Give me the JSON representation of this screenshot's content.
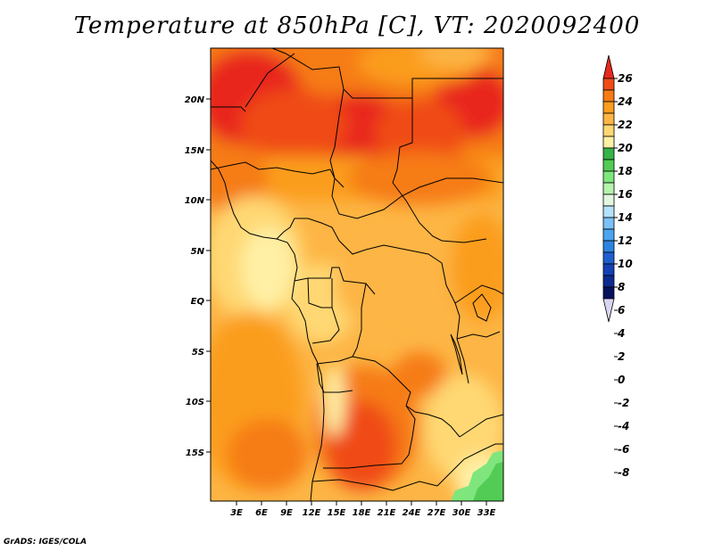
{
  "map": {
    "title": "Temperature at 850hPa [C], VT: 2020092400",
    "credit": "GrADS: IGES/COLA",
    "lat_ticks": [
      "20N",
      "15N",
      "10N",
      "5N",
      "EQ",
      "5S",
      "10S",
      "15S"
    ],
    "lon_ticks": [
      "3E",
      "6E",
      "9E",
      "12E",
      "15E",
      "18E",
      "21E",
      "24E",
      "27E",
      "30E",
      "33E"
    ],
    "colorbar": {
      "levels": [
        "26",
        "24",
        "22",
        "20",
        "18",
        "16",
        "14",
        "12",
        "10",
        "8",
        "6",
        "4",
        "2",
        "0",
        "-2",
        "-4",
        "-6",
        "-8"
      ],
      "colors_top_to_bottom": [
        "#e8281e",
        "#f04b16",
        "#f67b12",
        "#fb9d1e",
        "#fdb545",
        "#ffd873",
        "#fff0a5",
        "#36b349",
        "#52cc54",
        "#7ee67c",
        "#b7f2ae",
        "#e3f7e0",
        "#b4e2fa",
        "#7ac2f5",
        "#4aa4ef",
        "#2c84e0",
        "#1e5fd0",
        "#1441b4",
        "#0d2a90",
        "#07125e",
        "#d9d6f2"
      ]
    }
  }
}
